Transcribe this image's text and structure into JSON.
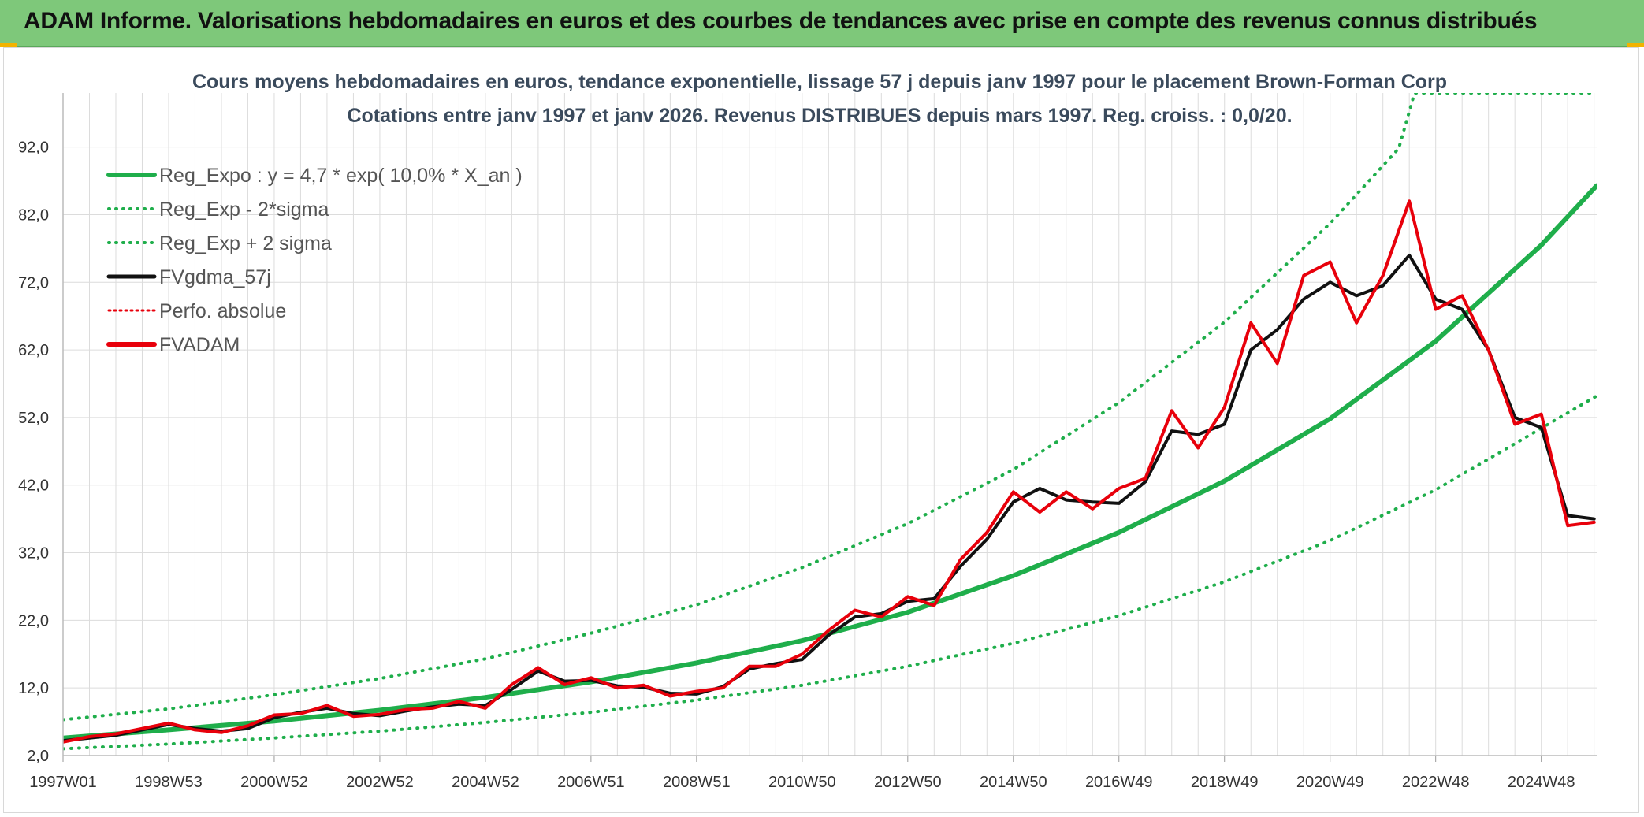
{
  "header": {
    "title": "ADAM Informe. Valorisations hebdomadaires en euros et des courbes de tendances avec prise en compte des revenus connus distribués"
  },
  "colors": {
    "header_bg": "#7ec87a",
    "green": "#1fae4b",
    "black": "#111111",
    "red": "#e8000b",
    "grid": "#dcdcdc"
  },
  "chart_data": {
    "type": "line",
    "title_line1": "Cours moyens hebdomadaires en euros, tendance exponentielle, lissage 57 j depuis janv 1997 pour le placement Brown-Forman Corp",
    "title_line2": "Cotations entre janv 1997 et janv 2026. Revenus DISTRIBUES depuis mars 1997. Reg. croiss. : 0,0/20.",
    "xlabel": "",
    "ylabel": "",
    "x_range": [
      1997.0,
      2026.05
    ],
    "ylim": [
      2.0,
      100.0
    ],
    "y_ticks": [
      "2,0",
      "12,0",
      "22,0",
      "32,0",
      "42,0",
      "52,0",
      "62,0",
      "72,0",
      "82,0",
      "92,0"
    ],
    "y_tick_values": [
      2,
      12,
      22,
      32,
      42,
      52,
      62,
      72,
      82,
      92
    ],
    "x_ticks": [
      "1997W01",
      "1998W53",
      "2000W52",
      "2002W52",
      "2004W52",
      "2006W51",
      "2008W51",
      "2010W50",
      "2012W50",
      "2014W50",
      "2016W49",
      "2018W49",
      "2020W49",
      "2022W48",
      "2024W48"
    ],
    "x_tick_values": [
      1997.0,
      1999.0,
      2001.0,
      2003.0,
      2005.0,
      2007.0,
      2009.0,
      2011.0,
      2013.0,
      2015.0,
      2017.0,
      2019.0,
      2021.0,
      2023.0,
      2025.0
    ],
    "legend_position": "top-left",
    "legend": [
      {
        "label": "Reg_Expo : y = 4,7 * exp( 10,0% *  X_an )",
        "style": "solid-green"
      },
      {
        "label": "Reg_Exp - 2*sigma",
        "style": "dotted-green"
      },
      {
        "label": "Reg_Exp + 2 sigma",
        "style": "dotted-green"
      },
      {
        "label": "FVgdma_57j",
        "style": "solid-black"
      },
      {
        "label": "Perfo. absolue",
        "style": "dotted-red"
      },
      {
        "label": "FVADAM",
        "style": "solid-red"
      }
    ],
    "series": [
      {
        "name": "Reg_Expo",
        "x": [
          1997.0,
          1999.0,
          2001.0,
          2003.0,
          2005.0,
          2007.0,
          2009.0,
          2011.0,
          2013.0,
          2015.0,
          2017.0,
          2019.0,
          2021.0,
          2023.0,
          2025.0,
          2026.05
        ],
        "values": [
          4.6,
          5.8,
          7.1,
          8.7,
          10.6,
          12.9,
          15.7,
          19.0,
          23.2,
          28.6,
          35.0,
          42.6,
          51.8,
          63.3,
          77.5,
          86.3
        ]
      },
      {
        "name": "Reg_Exp - 2*sigma",
        "x": [
          1997.0,
          1999.0,
          2001.0,
          2003.0,
          2005.0,
          2007.0,
          2009.0,
          2011.0,
          2013.0,
          2015.0,
          2017.0,
          2019.0,
          2021.0,
          2023.0,
          2025.0,
          2026.05
        ],
        "values": [
          3.0,
          3.7,
          4.6,
          5.6,
          6.9,
          8.4,
          10.2,
          12.4,
          15.2,
          18.6,
          22.7,
          27.7,
          33.8,
          41.3,
          50.4,
          55.2
        ]
      },
      {
        "name": "Reg_Exp + 2 sigma",
        "x": [
          1997.0,
          1999.0,
          2001.0,
          2003.0,
          2005.0,
          2007.0,
          2009.0,
          2011.0,
          2013.0,
          2015.0,
          2017.0,
          2019.0,
          2021.0,
          2022.3,
          2022.6,
          2023.0,
          2025.0,
          2026.05
        ],
        "values": [
          7.3,
          8.9,
          11.0,
          13.4,
          16.3,
          20.1,
          24.3,
          29.8,
          36.3,
          44.3,
          54.2,
          66.1,
          80.7,
          91.8,
          100.0,
          100.0,
          100.0,
          100.0
        ]
      },
      {
        "name": "FVgdma_57j",
        "x": [
          1997.0,
          1997.5,
          1998.0,
          1998.5,
          1999.0,
          1999.5,
          2000.0,
          2000.5,
          2001.0,
          2001.5,
          2002.0,
          2002.5,
          2003.0,
          2003.5,
          2004.0,
          2004.5,
          2005.0,
          2005.5,
          2006.0,
          2006.5,
          2007.0,
          2007.5,
          2008.0,
          2008.5,
          2009.0,
          2009.5,
          2010.0,
          2010.5,
          2011.0,
          2011.5,
          2012.0,
          2012.5,
          2013.0,
          2013.5,
          2014.0,
          2014.5,
          2015.0,
          2015.5,
          2016.0,
          2016.5,
          2017.0,
          2017.5,
          2018.0,
          2018.5,
          2019.0,
          2019.5,
          2020.0,
          2020.5,
          2021.0,
          2021.5,
          2022.0,
          2022.5,
          2023.0,
          2023.5,
          2024.0,
          2024.5,
          2025.0,
          2025.5,
          2026.0
        ],
        "values": [
          4.2,
          4.6,
          5.0,
          5.8,
          6.6,
          6.0,
          5.6,
          6.0,
          7.6,
          8.4,
          9.0,
          8.2,
          7.9,
          8.6,
          9.2,
          9.6,
          9.4,
          11.8,
          14.5,
          13.0,
          13.1,
          12.3,
          12.1,
          11.2,
          11.1,
          12.2,
          14.8,
          15.6,
          16.2,
          19.8,
          22.5,
          23.0,
          24.8,
          25.2,
          30.0,
          34.0,
          39.5,
          41.5,
          39.8,
          39.5,
          39.3,
          42.5,
          50.0,
          49.5,
          51.0,
          62.0,
          65.0,
          69.5,
          72.0,
          70.0,
          71.5,
          76.0,
          69.5,
          68.0,
          62.0,
          52.0,
          50.5,
          37.5,
          37.0
        ]
      },
      {
        "name": "FVADAM",
        "x": [
          1997.0,
          1997.5,
          1998.0,
          1998.5,
          1999.0,
          1999.5,
          2000.0,
          2000.5,
          2001.0,
          2001.5,
          2002.0,
          2002.5,
          2003.0,
          2003.5,
          2004.0,
          2004.5,
          2005.0,
          2005.5,
          2006.0,
          2006.5,
          2007.0,
          2007.5,
          2008.0,
          2008.5,
          2009.0,
          2009.5,
          2010.0,
          2010.5,
          2011.0,
          2011.5,
          2012.0,
          2012.5,
          2013.0,
          2013.5,
          2014.0,
          2014.5,
          2015.0,
          2015.5,
          2016.0,
          2016.5,
          2017.0,
          2017.5,
          2018.0,
          2018.5,
          2019.0,
          2019.5,
          2020.0,
          2020.5,
          2021.0,
          2021.5,
          2022.0,
          2022.5,
          2023.0,
          2023.5,
          2024.0,
          2024.5,
          2025.0,
          2025.5,
          2026.0
        ],
        "values": [
          4.0,
          4.8,
          5.2,
          6.0,
          6.8,
          5.8,
          5.4,
          6.4,
          8.0,
          8.2,
          9.4,
          7.8,
          8.1,
          8.8,
          9.0,
          10.0,
          9.0,
          12.5,
          15.0,
          12.5,
          13.5,
          12.0,
          12.4,
          10.8,
          11.5,
          12.0,
          15.2,
          15.2,
          17.0,
          20.5,
          23.5,
          22.5,
          25.5,
          24.2,
          31.0,
          35.0,
          41.0,
          38.0,
          41.0,
          38.5,
          41.5,
          43.0,
          53.0,
          47.5,
          53.5,
          66.0,
          60.0,
          73.0,
          75.0,
          66.0,
          73.0,
          84.0,
          68.0,
          70.0,
          62.0,
          51.0,
          52.5,
          36.0,
          36.5
        ]
      }
    ]
  }
}
